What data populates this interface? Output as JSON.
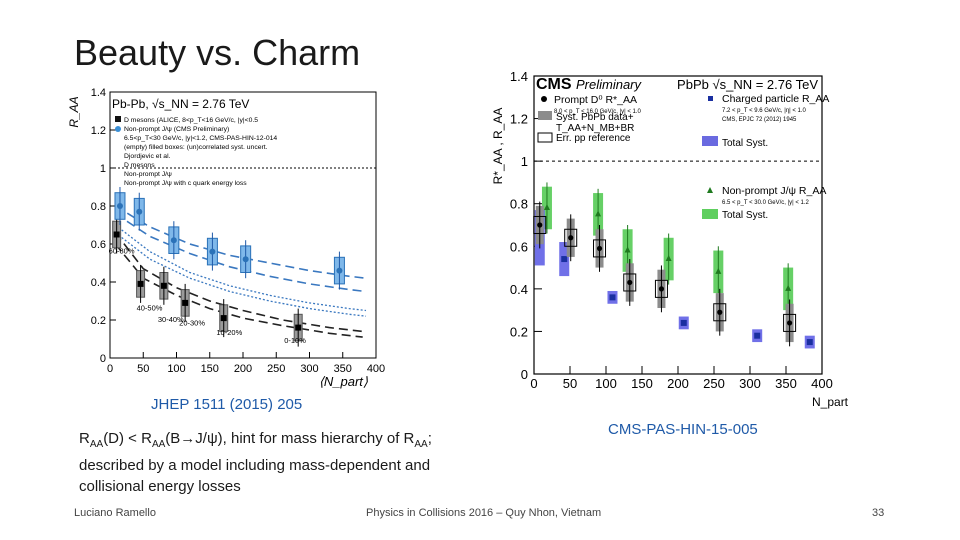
{
  "slide": {
    "title": "Beauty vs. Charm",
    "ref_left": "JHEP 1511 (2015) 205",
    "ref_right": "CMS-PAS-HIN-15-005",
    "caption_rest": "described by a model including mass-dependent and collisional energy losses",
    "footer_author": "Luciano Ramello",
    "footer_conf": "Physics in Collisions 2016 – Quy Nhon, Vietnam",
    "page_number": "33"
  },
  "chart_data": [
    {
      "type": "scatter",
      "ylabel": "R_AA",
      "xlabel": "⟨N_part⟩",
      "xlim": [
        0,
        400
      ],
      "ylim": [
        0,
        1.4
      ],
      "x_ticks": [
        0,
        50,
        100,
        150,
        200,
        250,
        300,
        350,
        400
      ],
      "y_ticks": [
        0,
        0.2,
        0.4,
        0.6,
        0.8,
        1,
        1.2,
        1.4
      ],
      "header": "Pb-Pb, √s_NN = 2.76 TeV",
      "legend": [
        "D mesons (ALICE, 8<p_T<16 GeV/c, |y|<0.5",
        "Non-prompt J/ψ (CMS Preliminary)",
        "6.5<p_T<30 GeV/c, |y|<1.2, CMS-PAS-HIN-12-014",
        "(empty) filled boxes: (un)correlated syst. uncert.",
        "Djordjevic et al.",
        "D mesons",
        "Non-prompt J/ψ",
        "Non-prompt J/ψ with c quark energy loss"
      ],
      "centrality_labels": [
        "60-80%",
        "40-50%",
        "30-40%",
        "20-30%",
        "10-20%",
        "0-10%"
      ],
      "series": [
        {
          "name": "D mesons",
          "x": [
            10,
            46,
            81,
            113,
            171,
            283
          ],
          "y": [
            0.65,
            0.39,
            0.38,
            0.29,
            0.21,
            0.16
          ]
        },
        {
          "name": "Non-prompt J/ψ",
          "x": [
            15,
            44,
            96,
            154,
            204,
            345
          ],
          "y": [
            0.8,
            0.77,
            0.62,
            0.56,
            0.52,
            0.46
          ]
        }
      ]
    },
    {
      "type": "scatter",
      "header_title": "CMS",
      "header_sub": "Preliminary",
      "header_energy": "PbPb √s_NN = 2.76 TeV",
      "ylabel": "R*_AA , R_AA",
      "xlabel": "N_part",
      "xlim": [
        0,
        400
      ],
      "ylim": [
        0,
        1.4
      ],
      "x_ticks": [
        0,
        50,
        100,
        150,
        200,
        250,
        300,
        350,
        400
      ],
      "y_ticks": [
        0,
        0.2,
        0.4,
        0.6,
        0.8,
        1,
        1.2,
        1.4
      ],
      "legend": [
        "Prompt D⁰ R*_AA",
        "8.0 < p_T < 16.0 GeV/c, |y| < 1.0",
        "Syst. PbPb data+",
        "T_AA+N_MB+BR",
        "Err. pp reference",
        "Charged particle R_AA",
        "7.2 < p_T < 9.6 GeV/c, |η| < 1.0",
        "CMS, EPJC 72 (2012) 1945",
        "Total Syst.",
        "Non-prompt J/ψ R_AA",
        "6.5 < p_T < 30.0 GeV/c, |y| < 1.2",
        "Total Syst."
      ],
      "series": [
        {
          "name": "Prompt D⁰ R*_AA",
          "x": [
            8,
            51,
            91,
            133,
            177,
            258,
            355
          ],
          "y": [
            0.7,
            0.64,
            0.59,
            0.43,
            0.4,
            0.29,
            0.24
          ]
        },
        {
          "name": "Charged particle R_AA",
          "x": [
            8,
            42,
            109,
            208,
            310,
            383
          ],
          "y": [
            0.64,
            0.54,
            0.36,
            0.24,
            0.18,
            0.15
          ]
        },
        {
          "name": "Non-prompt J/ψ R_AA",
          "x": [
            18,
            89,
            130,
            187,
            256,
            353
          ],
          "y": [
            0.78,
            0.75,
            0.58,
            0.54,
            0.48,
            0.4
          ]
        }
      ]
    }
  ]
}
